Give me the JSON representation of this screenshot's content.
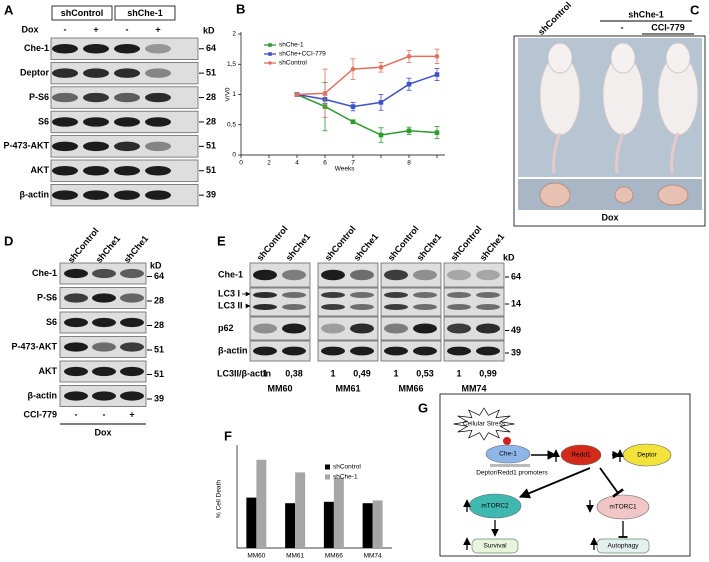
{
  "figure": {
    "A": {
      "label": "A",
      "groups": [
        "shControl",
        "shChe-1"
      ],
      "dox_label": "Dox",
      "dox": [
        "-",
        "+",
        "-",
        "+"
      ],
      "kd_label": "kD",
      "rows": [
        {
          "name": "Che-1",
          "kd": 64
        },
        {
          "name": "Deptor",
          "kd": 51
        },
        {
          "name": "P-S6",
          "kd": 28
        },
        {
          "name": "S6",
          "kd": 28
        },
        {
          "name": "P-473-AKT",
          "kd": 51
        },
        {
          "name": "AKT",
          "kd": 51
        },
        {
          "name": "β-actin",
          "kd": 39
        }
      ]
    },
    "C": {
      "label": "C",
      "group_left": "shControl",
      "group_right": "shChe-1",
      "treatments": [
        "-",
        "CCI-779"
      ],
      "bottom": "Dox"
    },
    "D": {
      "label": "D",
      "lanes": [
        "shControl",
        "shChe1",
        "shChe1"
      ],
      "kd_label": "kD",
      "rows": [
        {
          "name": "Che-1",
          "kd": 64
        },
        {
          "name": "P-S6",
          "kd": 28
        },
        {
          "name": "S6",
          "kd": 28
        },
        {
          "name": "P-473-AKT",
          "kd": 51
        },
        {
          "name": "AKT",
          "kd": 51
        },
        {
          "name": "β-actin",
          "kd": 39
        }
      ],
      "treatment_label": "CCI-779",
      "treatment": [
        "-",
        "-",
        "+"
      ],
      "bottom": "Dox"
    },
    "E": {
      "label": "E",
      "kd_label": "kD",
      "ratio_label": "LC3II/β-actin",
      "rows": [
        {
          "name": "Che-1",
          "kd": 64
        },
        {
          "names": [
            "LC3 I",
            "LC3 II"
          ],
          "kd": 14
        },
        {
          "name": "p62",
          "kd": 49
        },
        {
          "name": "β-actin",
          "kd": 39
        }
      ],
      "lines": [
        {
          "name": "MM60",
          "lanes": [
            "shControl",
            "shChe1"
          ],
          "ratio": [
            "1",
            "0,38"
          ]
        },
        {
          "name": "MM61",
          "lanes": [
            "shControl",
            "shChe1"
          ],
          "ratio": [
            "1",
            "0,49"
          ]
        },
        {
          "name": "MM66",
          "lanes": [
            "shControl",
            "shChe1"
          ],
          "ratio": [
            "1",
            "0,53"
          ]
        },
        {
          "name": "MM74",
          "lanes": [
            "shControl",
            "shChe1"
          ],
          "ratio": [
            "1",
            "0,99"
          ]
        }
      ]
    },
    "G": {
      "label": "G",
      "stress": "Cellular Stress",
      "che1": "Che-1",
      "promoters": "Deptor/Redd1 promoters",
      "redd1": "Redd1",
      "deptor": "Deptor",
      "mtorc2": "mTORC2",
      "mtorc1": "mTORC1",
      "survival": "Survival",
      "autophagy": "Autophagy"
    }
  },
  "chart_data": [
    {
      "type": "line",
      "label": "B",
      "x_label": "Weeks",
      "y_label": "V/V0",
      "categories": [
        "0",
        "2",
        "4",
        "6",
        "7",
        null,
        "8",
        null
      ],
      "ylim": [
        0,
        2
      ],
      "yticks": [
        0,
        {
          "value": 0.5,
          "label": "0,5"
        },
        1,
        {
          "value": 1.5,
          "label": "1,5"
        },
        2
      ],
      "series": [
        {
          "name": "shChe-1",
          "color": "#2e9a2e",
          "marker": "square",
          "values": [
            null,
            null,
            1,
            0.8,
            0.55,
            0.33,
            0.4,
            0.37
          ],
          "errors": [
            null,
            null,
            0,
            0.4,
            0.03,
            0.12,
            0.06,
            0.1
          ]
        },
        {
          "name": "shChe+CCI-779",
          "color": "#3f51c8",
          "marker": "square",
          "values": [
            null,
            null,
            1,
            0.92,
            0.8,
            0.87,
            1.17,
            1.33
          ],
          "errors": [
            null,
            null,
            0,
            0.07,
            0.07,
            0.13,
            0.1,
            0.1
          ]
        },
        {
          "name": "shControl",
          "color": "#e0705f",
          "marker": "circle",
          "values": [
            null,
            null,
            1,
            1.02,
            1.42,
            1.45,
            1.63,
            1.63
          ],
          "errors": [
            null,
            null,
            0,
            0.4,
            0.17,
            0.08,
            0.1,
            0.12
          ]
        }
      ]
    },
    {
      "type": "bar",
      "label": "F",
      "y_label": "% Cell Death",
      "categories": [
        "MM60",
        "MM61",
        "MM66",
        "MM74"
      ],
      "ylim": [
        0,
        70
      ],
      "series": [
        {
          "name": "shControl",
          "color": "#000000",
          "values": [
            36,
            32,
            33,
            32
          ]
        },
        {
          "name": "shChe-1",
          "color": "#a6a6a6",
          "values": [
            63,
            54,
            50,
            34
          ]
        }
      ]
    }
  ]
}
